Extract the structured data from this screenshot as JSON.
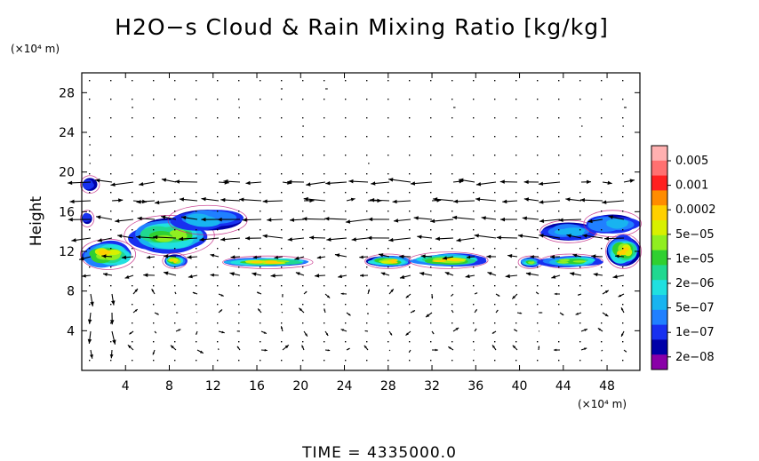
{
  "chart_data": {
    "type": "heatmap",
    "title": "H2O−s Cloud & Rain Mixing Ratio [kg/kg]",
    "ylabel": "Height",
    "x_unit": "(×10⁴ m)",
    "y_unit": "(×10⁴ m)",
    "time_label": "TIME = 4335000.0",
    "xlim": [
      0,
      51
    ],
    "ylim": [
      0,
      30
    ],
    "x_ticks": [
      4,
      8,
      12,
      16,
      20,
      24,
      28,
      32,
      36,
      40,
      44,
      48
    ],
    "y_ticks": [
      4,
      8,
      12,
      16,
      20,
      24,
      28
    ],
    "colorbar": {
      "labels": [
        "0.005",
        "0.001",
        "0.0002",
        "5e−05",
        "1e−05",
        "2e−06",
        "5e−07",
        "1e−07",
        "2e−08"
      ],
      "colors_top_to_bottom": [
        "#ffb0b0",
        "#ff7070",
        "#ff2020",
        "#ff8c00",
        "#ffd000",
        "#d8f000",
        "#90ee20",
        "#30d030",
        "#20d890",
        "#20e0e0",
        "#18b4f0",
        "#2080ff",
        "#1830f0",
        "#0000a8",
        "#8a00a8"
      ]
    },
    "cloud_regions": [
      {
        "x": [
          0,
          1.5
        ],
        "y": [
          18,
          19.5
        ],
        "peak": "1e−07"
      },
      {
        "x": [
          0,
          1
        ],
        "y": [
          14.6,
          16
        ],
        "peak": "1e−07"
      },
      {
        "x": [
          0,
          4.8
        ],
        "y": [
          10.3,
          13.1
        ],
        "peak": "5e−05"
      },
      {
        "x": [
          4,
          12
        ],
        "y": [
          11.7,
          15.5
        ],
        "peak": "1e−05"
      },
      {
        "x": [
          8,
          15
        ],
        "y": [
          13.8,
          16.5
        ],
        "peak": "5e−07"
      },
      {
        "x": [
          7.5,
          9.5
        ],
        "y": [
          10.4,
          11.7
        ],
        "peak": "5e−05"
      },
      {
        "x": [
          13,
          21
        ],
        "y": [
          10.4,
          11.4
        ],
        "peak": "5e−05"
      },
      {
        "x": [
          26,
          30
        ],
        "y": [
          10.4,
          11.6
        ],
        "peak": "5e−05"
      },
      {
        "x": [
          30,
          37
        ],
        "y": [
          10.4,
          11.8
        ],
        "peak": "5e−05"
      },
      {
        "x": [
          40,
          42
        ],
        "y": [
          10.4,
          11.4
        ],
        "peak": "1e−05"
      },
      {
        "x": [
          42,
          47.5
        ],
        "y": [
          10.4,
          11.6
        ],
        "peak": "1e−05"
      },
      {
        "x": [
          42,
          47
        ],
        "y": [
          13,
          15
        ],
        "peak": "5e−07"
      },
      {
        "x": [
          46,
          51
        ],
        "y": [
          13.6,
          16
        ],
        "peak": "5e−07"
      },
      {
        "x": [
          48,
          51
        ],
        "y": [
          10.4,
          13.6
        ],
        "peak": "5e−05"
      }
    ]
  }
}
